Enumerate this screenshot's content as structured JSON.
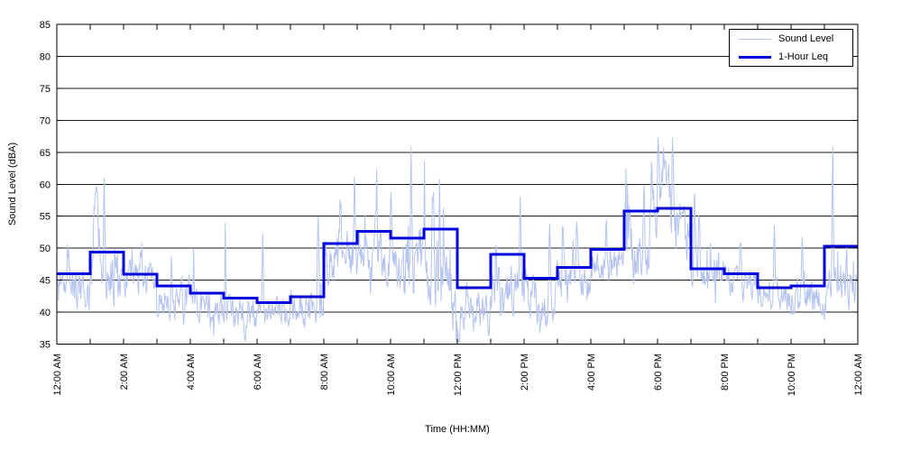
{
  "chart_data": {
    "type": "line",
    "title": "",
    "xlabel": "Time (HH:MM)",
    "ylabel": "Sound Level (dBA)",
    "ylim": [
      35,
      85
    ],
    "xlim_hours": [
      0,
      24
    ],
    "y_ticks": [
      35,
      40,
      45,
      50,
      55,
      60,
      65,
      70,
      75,
      80,
      85
    ],
    "x_tick_labels": [
      "12:00 AM",
      "2:00 AM",
      "4:00 AM",
      "6:00 AM",
      "8:00 AM",
      "10:00 AM",
      "12:00 PM",
      "2:00 PM",
      "4:00 PM",
      "6:00 PM",
      "8:00 PM",
      "10:00 PM",
      "12:00 AM"
    ],
    "x_tick_label_hours": [
      0,
      2,
      4,
      6,
      8,
      10,
      12,
      14,
      16,
      18,
      20,
      22,
      24
    ],
    "x_minor_tick_every_hours": 1,
    "grid": "horizontal-solid-black",
    "legend": {
      "position": "top-right",
      "entries": [
        {
          "label": "Sound Level",
          "color": "#b5c4ef",
          "line_width": 1.5
        },
        {
          "label": "1-Hour Leq",
          "color": "#0000dd",
          "line_width": 3
        }
      ]
    },
    "series": [
      {
        "name": "1-Hour Leq",
        "style": "step-per-hour",
        "hours": [
          0,
          1,
          2,
          3,
          4,
          5,
          6,
          7,
          8,
          9,
          10,
          11,
          12,
          13,
          14,
          15,
          16,
          17,
          18,
          19,
          20,
          21,
          22,
          23
        ],
        "values": [
          46.0,
          49.4,
          45.9,
          44.1,
          43.0,
          42.2,
          41.5,
          42.4,
          50.7,
          52.6,
          51.6,
          53.0,
          43.8,
          49.0,
          45.3,
          47.0,
          49.8,
          55.8,
          56.2,
          46.8,
          46.0,
          43.8,
          44.1,
          50.3
        ]
      },
      {
        "name": "Sound Level",
        "style": "noisy-minute-data",
        "note": "dense 1-minute sound level trace; reconstructed from hourly envelope + visible spike events",
        "sample_interval_minutes": 1,
        "seed": 12345,
        "hourly_mean": [
          43.5,
          45.0,
          44.5,
          41.5,
          40.5,
          40.0,
          40.0,
          41.0,
          48.5,
          48.5,
          47.5,
          47.0,
          41.0,
          43.5,
          42.0,
          44.5,
          47.5,
          50.5,
          53.0,
          45.5,
          44.5,
          42.5,
          42.5,
          43.0
        ],
        "hourly_spread": [
          2.6,
          3.0,
          2.2,
          2.4,
          2.4,
          2.0,
          1.8,
          2.6,
          3.2,
          3.8,
          4.0,
          5.0,
          2.8,
          3.2,
          3.0,
          2.6,
          2.6,
          4.5,
          4.5,
          2.6,
          2.0,
          2.0,
          2.2,
          2.6
        ],
        "events": [
          {
            "minute": 19,
            "level": 50.5,
            "width": 1.5
          },
          {
            "minute": 70,
            "level": 56.5,
            "width": 6
          },
          {
            "minute": 85,
            "level": 58.0,
            "width": 1.5
          },
          {
            "minute": 150,
            "level": 49.5,
            "width": 2
          },
          {
            "minute": 206,
            "level": 50.0,
            "width": 1.5
          },
          {
            "minute": 246,
            "level": 50.5,
            "width": 1.2
          },
          {
            "minute": 281,
            "level": 36.5,
            "width": 4
          },
          {
            "minute": 303,
            "level": 55.0,
            "width": 1.2
          },
          {
            "minute": 340,
            "level": 37.0,
            "width": 3
          },
          {
            "minute": 370,
            "level": 52.5,
            "width": 1.5
          },
          {
            "minute": 410,
            "level": 37.5,
            "width": 2
          },
          {
            "minute": 470,
            "level": 56.0,
            "width": 2
          },
          {
            "minute": 510,
            "level": 57.0,
            "width": 2
          },
          {
            "minute": 535,
            "level": 60.0,
            "width": 1.5
          },
          {
            "minute": 575,
            "level": 60.5,
            "width": 1.5
          },
          {
            "minute": 600,
            "level": 58.0,
            "width": 2
          },
          {
            "minute": 637,
            "level": 63.3,
            "width": 1.5
          },
          {
            "minute": 660,
            "level": 57.0,
            "width": 2
          },
          {
            "minute": 677,
            "level": 60.5,
            "width": 2
          },
          {
            "minute": 688,
            "level": 61.5,
            "width": 1.5
          },
          {
            "minute": 716,
            "level": 36.0,
            "width": 6
          },
          {
            "minute": 723,
            "level": 35.6,
            "width": 2
          },
          {
            "minute": 750,
            "level": 38.0,
            "width": 4
          },
          {
            "minute": 790,
            "level": 52.0,
            "width": 2
          },
          {
            "minute": 833,
            "level": 60.6,
            "width": 1.5
          },
          {
            "minute": 870,
            "level": 37.5,
            "width": 4
          },
          {
            "minute": 886,
            "level": 56.3,
            "width": 1.5
          },
          {
            "minute": 910,
            "level": 54.0,
            "width": 2
          },
          {
            "minute": 935,
            "level": 55.0,
            "width": 2
          },
          {
            "minute": 988,
            "level": 53.0,
            "width": 2
          },
          {
            "minute": 1030,
            "level": 55.0,
            "width": 2
          },
          {
            "minute": 1055,
            "level": 60.0,
            "width": 3
          },
          {
            "minute": 1070,
            "level": 63.0,
            "width": 4
          },
          {
            "minute": 1082,
            "level": 66.9,
            "width": 3
          },
          {
            "minute": 1090,
            "level": 62.0,
            "width": 3
          },
          {
            "minute": 1100,
            "level": 60.0,
            "width": 6
          },
          {
            "minute": 1107,
            "level": 66.6,
            "width": 1.5
          },
          {
            "minute": 1147,
            "level": 58.3,
            "width": 1.5
          },
          {
            "minute": 1155,
            "level": 55.5,
            "width": 2
          },
          {
            "minute": 1230,
            "level": 50.0,
            "width": 1.5
          },
          {
            "minute": 1290,
            "level": 51.5,
            "width": 1.5
          },
          {
            "minute": 1340,
            "level": 52.0,
            "width": 1.5
          },
          {
            "minute": 1395,
            "level": 64.2,
            "width": 1.5
          },
          {
            "minute": 1420,
            "level": 50.5,
            "width": 1.5
          }
        ]
      }
    ]
  },
  "colors": {
    "sound_level_line": "#b5c4ef",
    "leq_line": "#0000dd",
    "grid_line": "#1a1a1a",
    "axis": "#000000",
    "background": "#ffffff"
  }
}
